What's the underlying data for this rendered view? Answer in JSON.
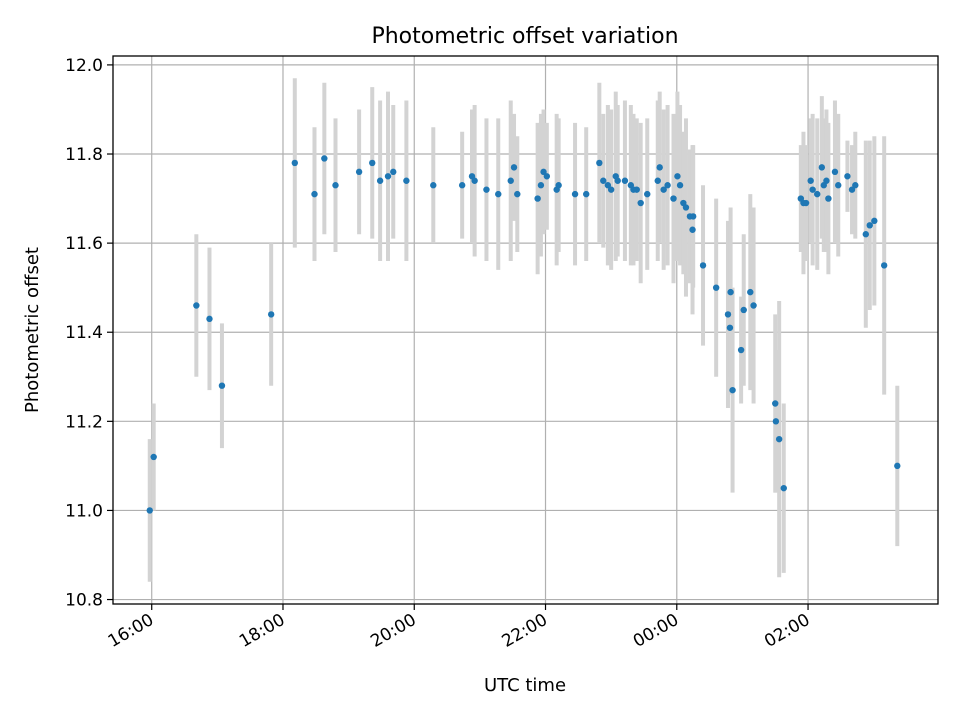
{
  "chart_data": {
    "type": "scatter",
    "title": "Photometric offset variation",
    "xlabel": "UTC time",
    "ylabel": "Photometric offset",
    "x_unit": "hours since 16:00 UTC",
    "xlim": [
      -0.59,
      11.98
    ],
    "ylim": [
      10.79,
      12.02
    ],
    "grid": true,
    "colors": {
      "point": "#1f77b4",
      "errorbar": "#d3d3d3",
      "grid": "#b0b0b0"
    },
    "x_ticks": [
      {
        "value": 0,
        "label": "16:00"
      },
      {
        "value": 2,
        "label": "18:00"
      },
      {
        "value": 4,
        "label": "20:00"
      },
      {
        "value": 6,
        "label": "22:00"
      },
      {
        "value": 8,
        "label": "00:00"
      },
      {
        "value": 10,
        "label": "02:00"
      }
    ],
    "y_ticks": [
      {
        "value": 10.8,
        "label": "10.8"
      },
      {
        "value": 11.0,
        "label": "11.0"
      },
      {
        "value": 11.2,
        "label": "11.2"
      },
      {
        "value": 11.4,
        "label": "11.4"
      },
      {
        "value": 11.6,
        "label": "11.6"
      },
      {
        "value": 11.8,
        "label": "11.8"
      },
      {
        "value": 12.0,
        "label": "12.0"
      }
    ],
    "series": [
      {
        "name": "offset",
        "x": [
          -0.03,
          0.03,
          0.68,
          0.88,
          1.07,
          1.82,
          2.18,
          2.48,
          2.63,
          2.8,
          3.16,
          3.36,
          3.48,
          3.6,
          3.68,
          3.88,
          4.29,
          4.73,
          4.88,
          4.92,
          5.1,
          5.28,
          5.47,
          5.52,
          5.57,
          5.88,
          5.93,
          5.97,
          6.02,
          6.17,
          6.2,
          6.45,
          6.62,
          6.82,
          6.88,
          6.95,
          7.0,
          7.07,
          7.1,
          7.21,
          7.3,
          7.34,
          7.39,
          7.45,
          7.55,
          7.71,
          7.74,
          7.8,
          7.86,
          7.95,
          8.01,
          8.05,
          8.1,
          8.14,
          8.2,
          8.24,
          8.25,
          8.4,
          8.6,
          8.78,
          8.81,
          8.82,
          8.85,
          8.98,
          9.02,
          9.12,
          9.17,
          9.5,
          9.51,
          9.56,
          9.63,
          9.89,
          9.93,
          9.97,
          10.04,
          10.07,
          10.14,
          10.21,
          10.24,
          10.28,
          10.31,
          10.41,
          10.46,
          10.6,
          10.67,
          10.72,
          10.88,
          10.94,
          11.01,
          11.16,
          11.36
        ],
        "y": [
          11.0,
          11.12,
          11.46,
          11.43,
          11.28,
          11.44,
          11.78,
          11.71,
          11.79,
          11.73,
          11.76,
          11.78,
          11.74,
          11.75,
          11.76,
          11.74,
          11.73,
          11.73,
          11.75,
          11.74,
          11.72,
          11.71,
          11.74,
          11.77,
          11.71,
          11.7,
          11.73,
          11.76,
          11.75,
          11.72,
          11.73,
          11.71,
          11.71,
          11.78,
          11.74,
          11.73,
          11.72,
          11.75,
          11.74,
          11.74,
          11.73,
          11.72,
          11.72,
          11.69,
          11.71,
          11.74,
          11.77,
          11.72,
          11.73,
          11.7,
          11.75,
          11.73,
          11.69,
          11.68,
          11.66,
          11.63,
          11.66,
          11.55,
          11.5,
          11.44,
          11.41,
          11.49,
          11.27,
          11.36,
          11.45,
          11.49,
          11.46,
          11.24,
          11.2,
          11.16,
          11.05,
          11.7,
          11.69,
          11.69,
          11.74,
          11.72,
          11.71,
          11.77,
          11.73,
          11.74,
          11.7,
          11.76,
          11.73,
          11.75,
          11.72,
          11.73,
          11.62,
          11.64,
          11.65,
          11.55,
          11.1
        ],
        "yerr": [
          0.16,
          0.12,
          0.16,
          0.16,
          0.14,
          0.16,
          0.19,
          0.15,
          0.17,
          0.15,
          0.14,
          0.17,
          0.18,
          0.19,
          0.15,
          0.18,
          0.13,
          0.12,
          0.15,
          0.17,
          0.16,
          0.17,
          0.18,
          0.12,
          0.13,
          0.17,
          0.16,
          0.14,
          0.12,
          0.17,
          0.15,
          0.16,
          0.15,
          0.18,
          0.15,
          0.18,
          0.18,
          0.19,
          0.17,
          0.18,
          0.18,
          0.17,
          0.16,
          0.18,
          0.17,
          0.18,
          0.17,
          0.18,
          0.18,
          0.19,
          0.19,
          0.18,
          0.16,
          0.2,
          0.15,
          0.19,
          0.16,
          0.18,
          0.2,
          0.21,
          0.15,
          0.19,
          0.23,
          0.12,
          0.17,
          0.22,
          0.22,
          0.2,
          0.16,
          0.31,
          0.19,
          0.12,
          0.16,
          0.13,
          0.14,
          0.17,
          0.17,
          0.16,
          0.15,
          0.16,
          0.17,
          0.16,
          0.16,
          0.08,
          0.1,
          0.12,
          0.21,
          0.19,
          0.19,
          0.29,
          0.18
        ]
      }
    ]
  }
}
